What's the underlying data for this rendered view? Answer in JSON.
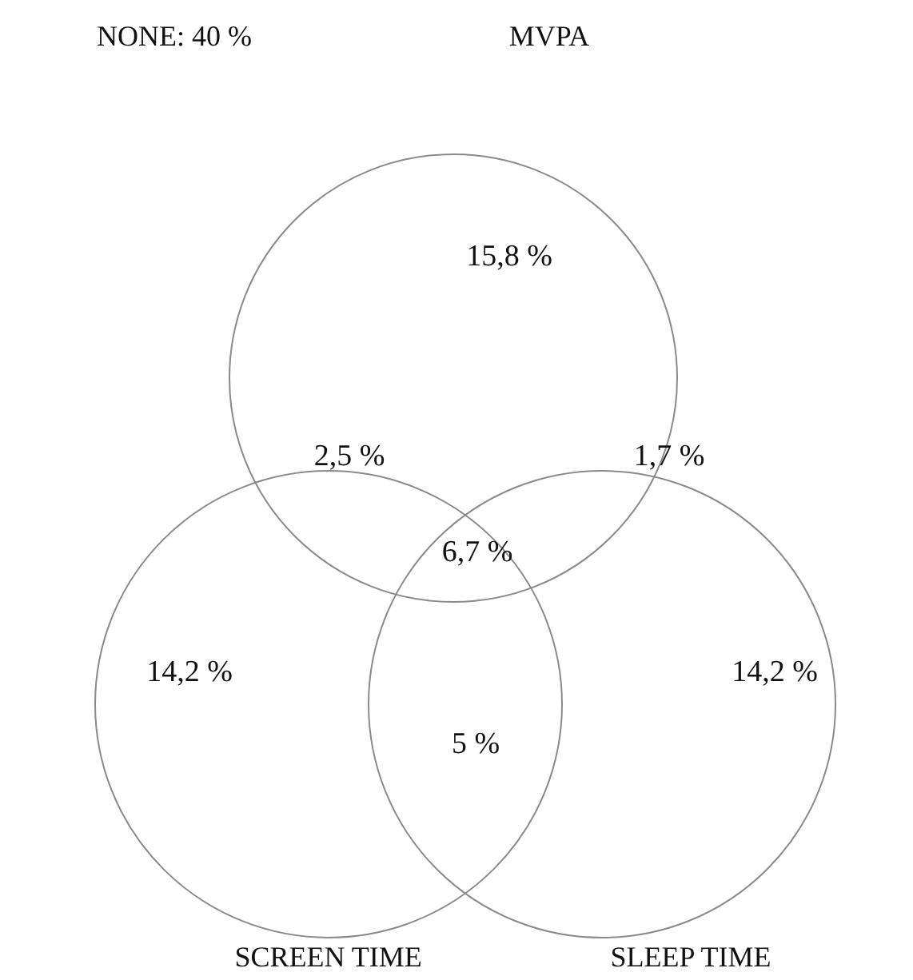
{
  "chart_data": {
    "type": "other",
    "categories": [
      null,
      null,
      null,
      null,
      null,
      null,
      null
    ],
    "values": [
      15.8,
      2.5,
      1.7,
      6.7,
      14.2,
      14.2,
      5
    ],
    "value_labels": [
      "15,8 %",
      "2,5 %",
      "1,7 %",
      "6,7 %",
      "14,2 %",
      "14,2 %",
      "5 %"
    ],
    "annotations": [
      "NONE: 40 %",
      "MVPA",
      "SCREEN TIME",
      "SLEEP TIME"
    ]
  }
}
